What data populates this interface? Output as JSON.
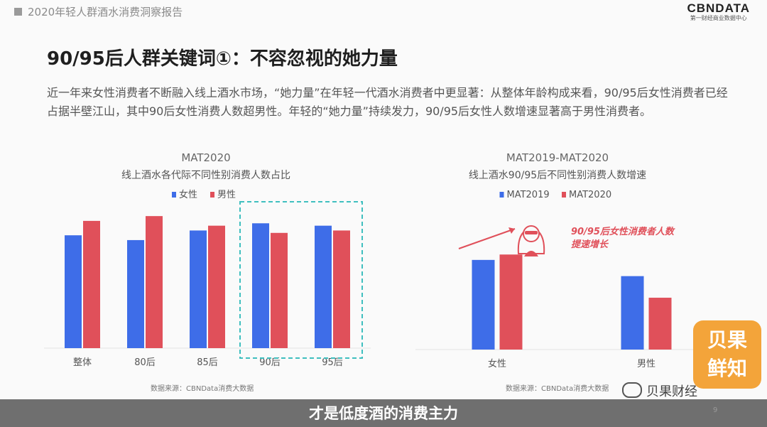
{
  "header": {
    "report_name": "2020年轻人群酒水消费洞察报告",
    "brand_name": "CBNDATA",
    "brand_sub": "第一财经商业数据中心"
  },
  "page_title": "90/95后人群关键词①：不容忽视的她力量",
  "intro_text": "近一年来女性消费者不断融入线上酒水市场，“她力量”在年轻一代酒水消费者中更显著：从整体年龄构成来看，90/95后女性消费者已经占据半壁江山，其中90后女性消费人数超男性。年轻的“她力量”持续发力，90/95后女性人数增速显著高于男性消费者。",
  "colors": {
    "blue": "#3e6de8",
    "red": "#e0505a",
    "highlight": "#3fbfbf",
    "accent": "#e0505a"
  },
  "chart_data": [
    {
      "type": "bar",
      "title": "MAT2020",
      "subtitle": "线上酒水各代际不同性别消费人数占比",
      "categories": [
        "整体",
        "80后",
        "85后",
        "90后",
        "95后"
      ],
      "series": [
        {
          "name": "女性",
          "color": "#3e6de8",
          "values": [
            47,
            45,
            49,
            52,
            51
          ]
        },
        {
          "name": "男性",
          "color": "#e0505a",
          "values": [
            53,
            55,
            51,
            48,
            49
          ]
        }
      ],
      "ylim": [
        0,
        58
      ],
      "grid": false,
      "legend": "top-center",
      "highlight_categories": [
        "90后",
        "95后"
      ],
      "source": "数据来源：CBNData消费大数据"
    },
    {
      "type": "bar",
      "title": "MAT2019-MAT2020",
      "subtitle": "线上酒水90/95后不同性别消费人数增速",
      "categories": [
        "女性",
        "男性"
      ],
      "series": [
        {
          "name": "MAT2019",
          "color": "#3e6de8",
          "values": [
            83,
            68
          ]
        },
        {
          "name": "MAT2020",
          "color": "#e0505a",
          "values": [
            88,
            48
          ]
        }
      ],
      "ylim": [
        0,
        100
      ],
      "grid": false,
      "legend": "top-center",
      "annotation": {
        "line1": "90/95后女性消费者人数",
        "line2": "提速增长"
      },
      "source": "数据来源：CBNData消费大数据"
    }
  ],
  "footer": {
    "subtitle": "才是低度酒的消费主力",
    "wechat": "贝果财经",
    "badge_line1": "贝果",
    "badge_line2": "鲜知",
    "page_number": "9"
  }
}
